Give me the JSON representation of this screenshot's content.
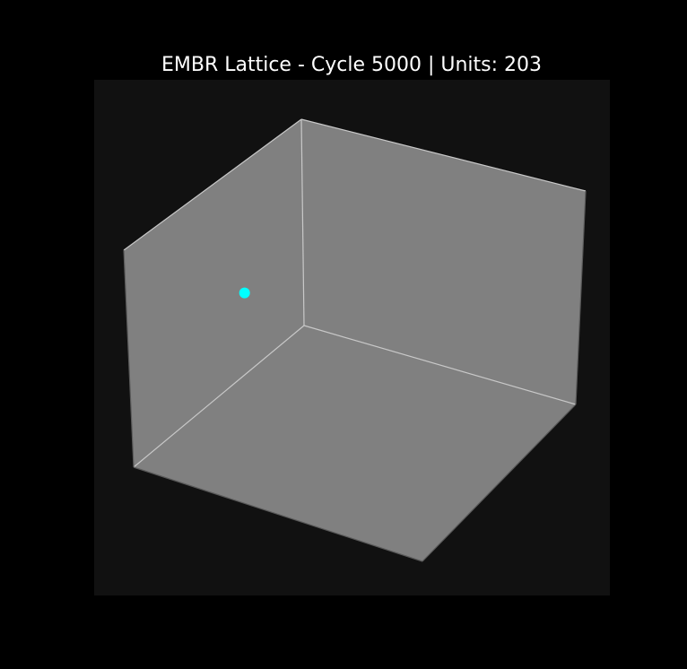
{
  "chart_data": {
    "type": "scatter",
    "projection": "3d",
    "title": "EMBR Lattice - Cycle 5000 | Units: 203",
    "xlabel": "",
    "ylabel": "",
    "zlabel": "",
    "axis_visible": false,
    "grid": false,
    "xlim": [
      0,
      1
    ],
    "ylim": [
      0,
      1
    ],
    "zlim": [
      0,
      1
    ],
    "series": [
      {
        "x": [
          0.1
        ],
        "y": [
          0.5
        ],
        "z": [
          0.54
        ]
      }
    ],
    "colors": {
      "figure_background": "#000000",
      "axes_background": "#111111",
      "pane": "#808080",
      "pane_edge": "#c8c8c8",
      "marker": "#00ffff",
      "title": "#ffffff"
    }
  }
}
